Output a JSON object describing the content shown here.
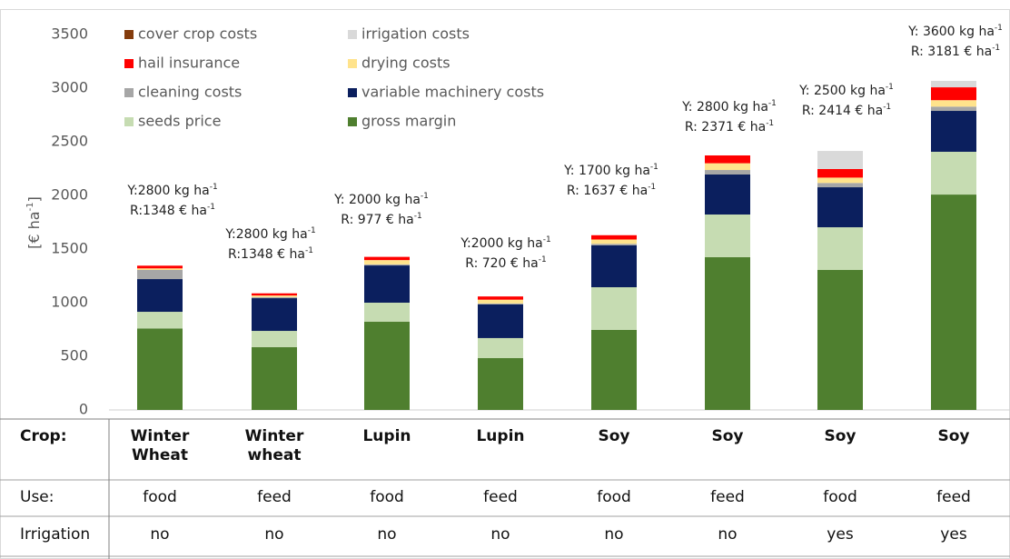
{
  "chart_data": {
    "type": "bar",
    "stacked": true,
    "y_label": "[€ ha",
    "y_label_sup": "-1",
    "y_label_end": "]",
    "ylim": [
      0,
      3500
    ],
    "yticks": [
      0,
      500,
      1000,
      1500,
      2000,
      2500,
      3000,
      3500
    ],
    "series": [
      {
        "name": "gross margin",
        "color": "#4f7f2f",
        "values": [
          760,
          585,
          822,
          483,
          746,
          1424,
          1305,
          2008
        ]
      },
      {
        "name": "seeds price",
        "color": "#c6dcb2",
        "values": [
          155,
          152,
          178,
          187,
          398,
          398,
          398,
          399
        ]
      },
      {
        "name": "variable machinery costs",
        "color": "#0b1f5e",
        "values": [
          305,
          305,
          347,
          313,
          390,
          373,
          373,
          381
        ]
      },
      {
        "name": "cleaning costs",
        "color": "#a6a6a6",
        "values": [
          85,
          10,
          10,
          10,
          15,
          42,
          40,
          40
        ]
      },
      {
        "name": "drying costs",
        "color": "#ffe38c",
        "values": [
          15,
          15,
          40,
          35,
          40,
          63,
          50,
          60
        ]
      },
      {
        "name": "hail insurance",
        "color": "#ff0000",
        "values": [
          25,
          20,
          30,
          30,
          40,
          73,
          80,
          120
        ]
      },
      {
        "name": "irrigation costs",
        "color": "#d9d9d9",
        "values": [
          0,
          0,
          0,
          0,
          0,
          0,
          169,
          60
        ]
      },
      {
        "name": "cover crop costs",
        "color": "#843c0c",
        "values": [
          0,
          0,
          0,
          0,
          0,
          0,
          0,
          0
        ]
      }
    ],
    "annotations": [
      {
        "y_text": "Y:2800 kg ha",
        "y_sup": "-1",
        "r_text": "R:1348 € ha",
        "r_sup": "-1"
      },
      {
        "y_text": "Y:2800 kg ha",
        "y_sup": "-1",
        "r_text": "R:1348 € ha",
        "r_sup": "-1"
      },
      {
        "y_text": "Y: 2000 kg ha",
        "y_sup": "-1",
        "r_text": "R: 977 € ha",
        "r_sup": "-1"
      },
      {
        "y_text": "Y:2000 kg ha",
        "y_sup": "-1",
        "r_text": "R: 720 € ha",
        "r_sup": "-1"
      },
      {
        "y_text": "Y: 1700 kg ha",
        "y_sup": "-1",
        "r_text": "R: 1637 € ha",
        "r_sup": "-1"
      },
      {
        "y_text": "Y: 2800 kg ha",
        "y_sup": "-1",
        "r_text": "R: 2371 € ha",
        "r_sup": "-1"
      },
      {
        "y_text": "Y: 2500 kg ha",
        "y_sup": "-1",
        "r_text": "R: 2414 € ha",
        "r_sup": "-1"
      },
      {
        "y_text": "Y: 3600 kg ha",
        "y_sup": "-1",
        "r_text": "R: 3181 € ha",
        "r_sup": "-1"
      }
    ],
    "table": {
      "rows": [
        {
          "label": "Crop:",
          "cells": [
            "Winter Wheat",
            "Winter wheat",
            "Lupin",
            "Lupin",
            "Soy",
            "Soy",
            "Soy",
            "Soy"
          ]
        },
        {
          "label": "Use:",
          "cells": [
            "food",
            "feed",
            "food",
            "feed",
            "food",
            "feed",
            "food",
            "feed"
          ]
        },
        {
          "label": "Irrigation",
          "cells": [
            "no",
            "no",
            "no",
            "no",
            "no",
            "no",
            "yes",
            "yes"
          ]
        }
      ]
    }
  }
}
